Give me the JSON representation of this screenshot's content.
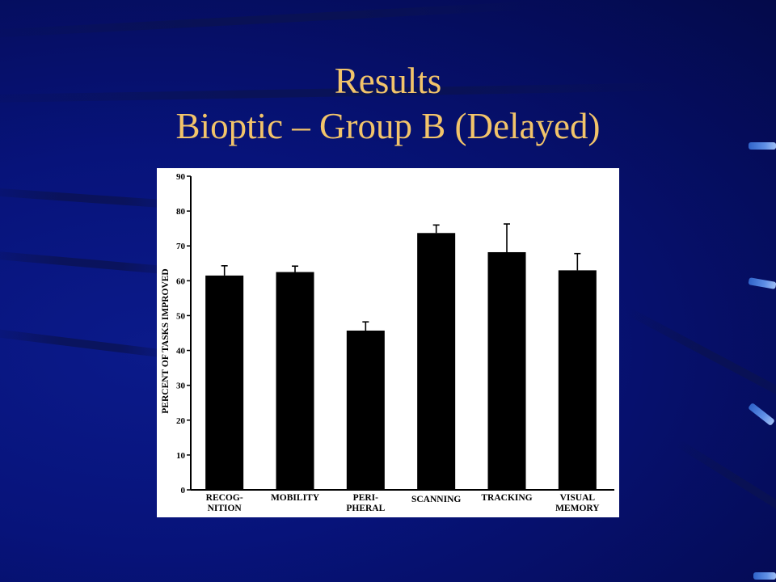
{
  "slide": {
    "title_line1": "Results",
    "title_line2": "Bioptic – Group B (Delayed)",
    "title_color": "#f2c46a",
    "background_color": "#07137a"
  },
  "chart_data": {
    "type": "bar",
    "title": "",
    "xlabel": "",
    "ylabel": "PERCENT OF TASKS IMPROVED",
    "ylim": [
      0,
      90
    ],
    "yticks": [
      0,
      10,
      20,
      30,
      40,
      50,
      60,
      70,
      80,
      90
    ],
    "categories": [
      [
        "RECOG-",
        "NITION"
      ],
      [
        "MOBILITY"
      ],
      [
        "PERI-",
        "PHERAL"
      ],
      [
        "SCANNING"
      ],
      [
        "TRACKING"
      ],
      [
        "VISUAL",
        "MEMORY"
      ]
    ],
    "values": [
      61.5,
      62.5,
      45.7,
      73.7,
      68.2,
      63.0
    ],
    "error_upper": [
      64.3,
      64.2,
      48.2,
      76.0,
      76.3,
      67.8
    ],
    "bar_color": "#000000",
    "grid": false,
    "legend": "none"
  }
}
